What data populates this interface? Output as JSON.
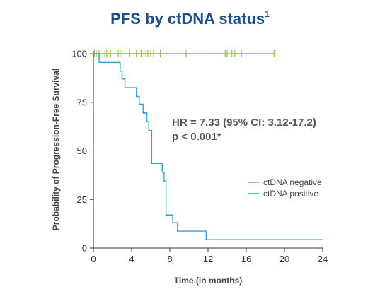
{
  "title": "PFS by ctDNA status",
  "title_superscript": "1",
  "chart_data": {
    "type": "line",
    "step": true,
    "xlabel": "Time (in months)",
    "ylabel": "Probability of Progression-Free Survival",
    "xlim": [
      0,
      24
    ],
    "ylim": [
      0,
      100
    ],
    "xticks": [
      0,
      4,
      8,
      12,
      16,
      20,
      24
    ],
    "yticks": [
      0,
      25,
      50,
      75,
      100
    ],
    "grid": false,
    "legend_position": "right",
    "annotation_lines": [
      "HR = 7.33 (95% CI: 3.12-17.2)",
      "p < 0.001*"
    ],
    "series": [
      {
        "name": "ctDNA negative",
        "color": "#8cc43f",
        "x": [
          0,
          19
        ],
        "y": [
          100,
          100
        ],
        "censor_x": [
          0.1,
          0.3,
          0.6,
          1.2,
          1.4,
          1.8,
          2.6,
          2.8,
          3.0,
          3.8,
          4.5,
          5.0,
          5.3,
          5.5,
          5.7,
          6.0,
          6.3,
          7.0,
          7.6,
          9.7,
          13.8,
          14.0,
          14.5,
          14.8,
          15.5,
          18.9,
          19.0
        ],
        "censor_y": 100
      },
      {
        "name": "ctDNA positive",
        "color": "#2ea3d6",
        "x": [
          0,
          0.6,
          2.8,
          3.0,
          3.3,
          4.5,
          4.8,
          5.2,
          5.6,
          5.8,
          6.1,
          7.2,
          7.4,
          7.6,
          8.3,
          8.8,
          11.8,
          24
        ],
        "y": [
          100,
          95.5,
          91,
          87,
          82.5,
          78,
          74,
          69.5,
          65,
          60.5,
          43.5,
          39,
          34.5,
          17,
          13,
          8.7,
          4.3,
          4.3
        ]
      }
    ]
  }
}
